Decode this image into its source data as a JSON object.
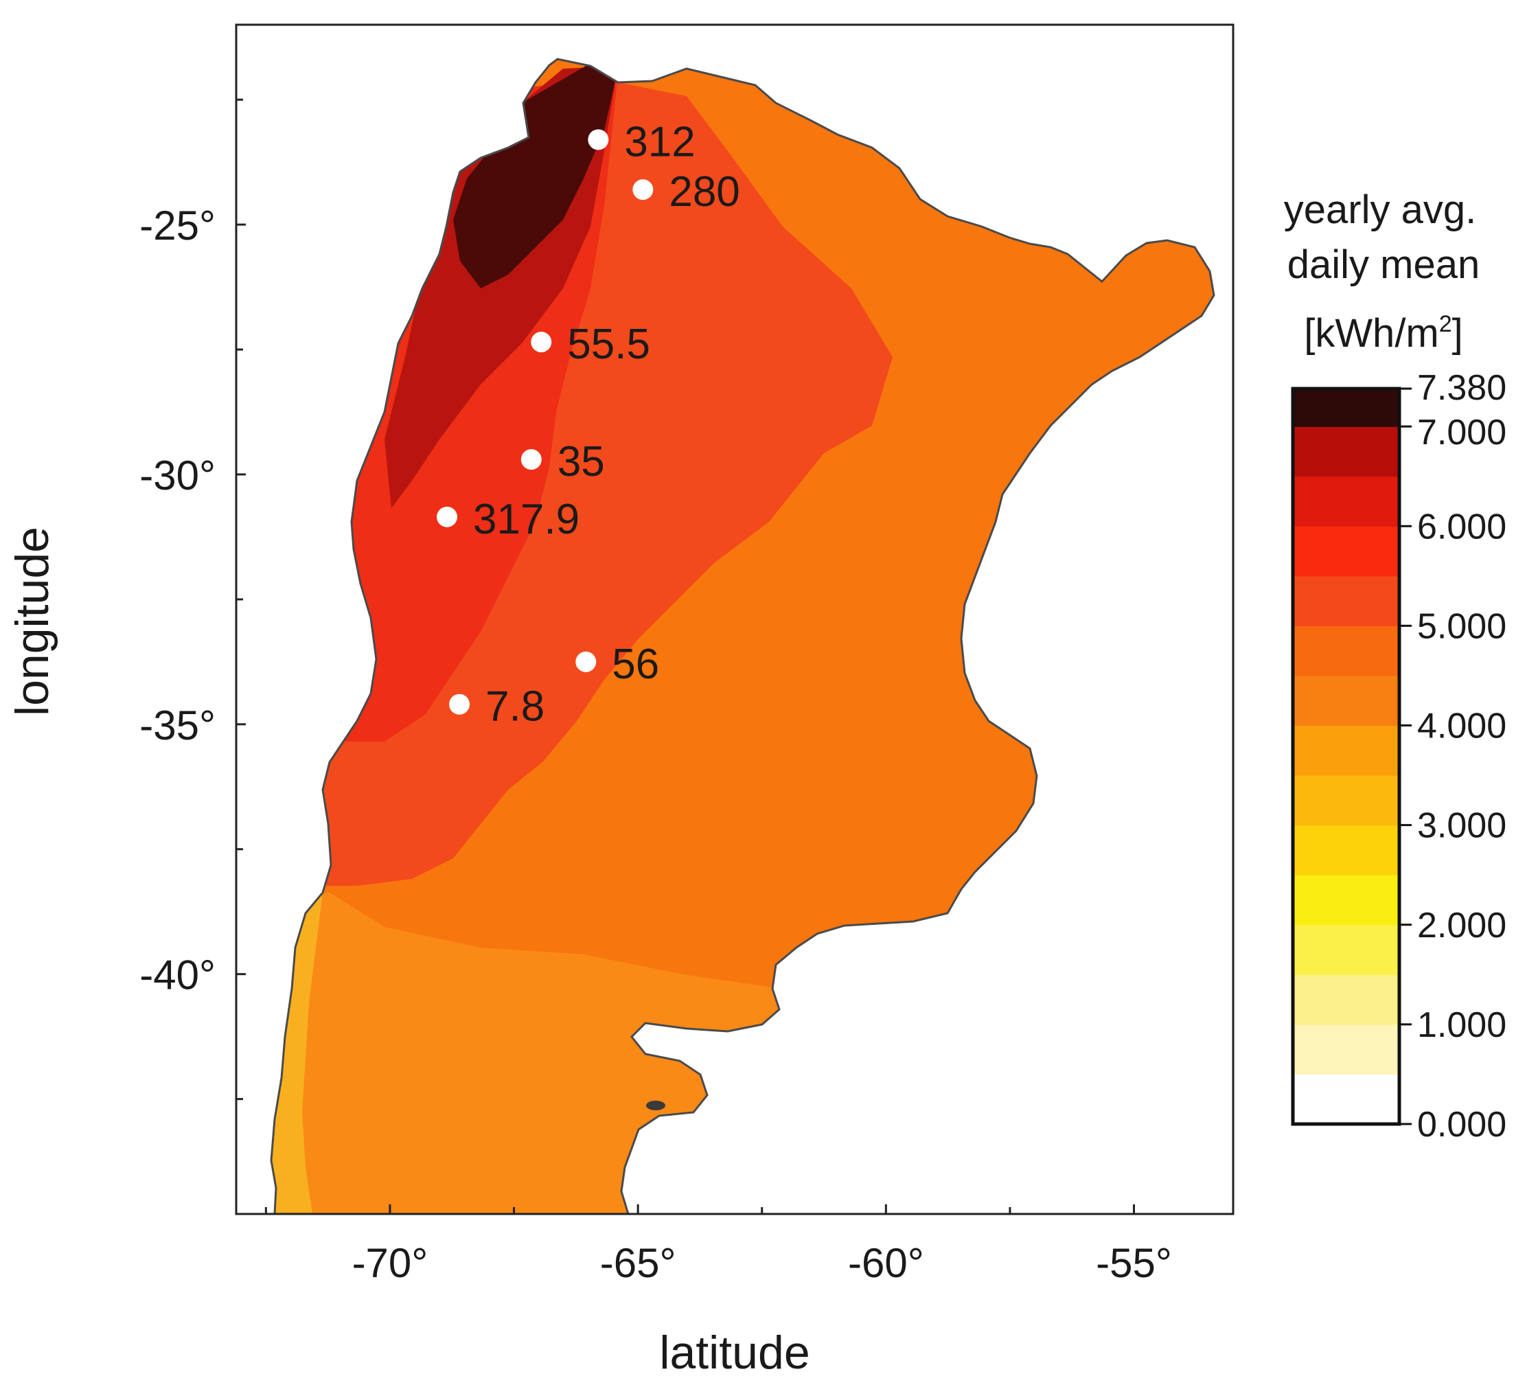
{
  "chart_data": {
    "type": "map",
    "xlabel": "latitude",
    "ylabel": "longitude",
    "xlim": [
      -73.1,
      -53.0
    ],
    "ylim": [
      -44.8,
      -21.0
    ],
    "x_ticks": [
      {
        "value": -70,
        "label": "-70°"
      },
      {
        "value": -65,
        "label": "-65°"
      },
      {
        "value": -60,
        "label": "-60°"
      },
      {
        "value": -55,
        "label": "-55°"
      }
    ],
    "y_ticks": [
      {
        "value": -25,
        "label": "-25°"
      },
      {
        "value": -30,
        "label": "-30°"
      },
      {
        "value": -35,
        "label": "-35°"
      },
      {
        "value": -40,
        "label": "-40°"
      }
    ],
    "x_minor_ticks": [
      -72.5,
      -67.5,
      -62.5,
      -57.5
    ],
    "y_minor_ticks": [
      -22.5,
      -27.5,
      -32.5,
      -37.5,
      -42.5
    ],
    "stations": [
      {
        "label": "312",
        "lon": -65.8,
        "lat": -23.3
      },
      {
        "label": "280",
        "lon": -64.9,
        "lat": -24.3
      },
      {
        "label": "55.5",
        "lon": -66.95,
        "lat": -27.35
      },
      {
        "label": "35",
        "lon": -67.15,
        "lat": -29.7
      },
      {
        "label": "317.9",
        "lon": -68.85,
        "lat": -30.85
      },
      {
        "label": "56",
        "lon": -66.05,
        "lat": -33.75
      },
      {
        "label": "7.8",
        "lon": -68.6,
        "lat": -34.6
      }
    ],
    "colorbar": {
      "title_lines": [
        "yearly avg.",
        "daily mean"
      ],
      "unit_base": "[kWh/m",
      "unit_sup": "2",
      "unit_close": "]",
      "labels": [
        {
          "value": 7.38,
          "text": "7.380"
        },
        {
          "value": 7.0,
          "text": "7.000"
        },
        {
          "value": 6.0,
          "text": "6.000"
        },
        {
          "value": 5.0,
          "text": "5.000"
        },
        {
          "value": 4.0,
          "text": "4.000"
        },
        {
          "value": 3.0,
          "text": "3.000"
        },
        {
          "value": 2.0,
          "text": "2.000"
        },
        {
          "value": 1.0,
          "text": "1.000"
        },
        {
          "value": 0.0,
          "text": "0.000"
        }
      ],
      "bands": [
        {
          "from": 0.0,
          "to": 0.5,
          "color": "#ffffff"
        },
        {
          "from": 0.5,
          "to": 1.0,
          "color": "#fcf4b8"
        },
        {
          "from": 1.0,
          "to": 1.5,
          "color": "#fbf08a"
        },
        {
          "from": 1.5,
          "to": 2.0,
          "color": "#fbf04a"
        },
        {
          "from": 2.0,
          "to": 2.5,
          "color": "#f9ee10"
        },
        {
          "from": 2.5,
          "to": 3.0,
          "color": "#fcd20a"
        },
        {
          "from": 3.0,
          "to": 3.5,
          "color": "#fcb80c"
        },
        {
          "from": 3.5,
          "to": 4.0,
          "color": "#fba00c"
        },
        {
          "from": 4.0,
          "to": 4.5,
          "color": "#f88012"
        },
        {
          "from": 4.5,
          "to": 5.0,
          "color": "#f86a10"
        },
        {
          "from": 5.0,
          "to": 5.5,
          "color": "#f44a1a"
        },
        {
          "from": 5.5,
          "to": 6.0,
          "color": "#fa2a0e"
        },
        {
          "from": 6.0,
          "to": 6.5,
          "color": "#e01a0c"
        },
        {
          "from": 6.5,
          "to": 7.0,
          "color": "#b80e0a"
        },
        {
          "from": 7.0,
          "to": 7.38,
          "color": "#2b0a08"
        }
      ]
    },
    "regions": [
      {
        "name": "south-yellow-fringe",
        "color": "#f9b020"
      },
      {
        "name": "southern-patagonia",
        "color": "#f98a16"
      },
      {
        "name": "central-plains",
        "color": "#f8760e"
      },
      {
        "name": "north-east",
        "color": "#f8760e"
      },
      {
        "name": "andean-belt",
        "color": "#f24a1c"
      },
      {
        "name": "cuyo-red",
        "color": "#ee2e16"
      },
      {
        "name": "puna-dark-red",
        "color": "#b81510"
      },
      {
        "name": "puna-darkest",
        "color": "#4a0a08"
      },
      {
        "name": "boundary",
        "color": "#4a4a4a"
      }
    ]
  }
}
